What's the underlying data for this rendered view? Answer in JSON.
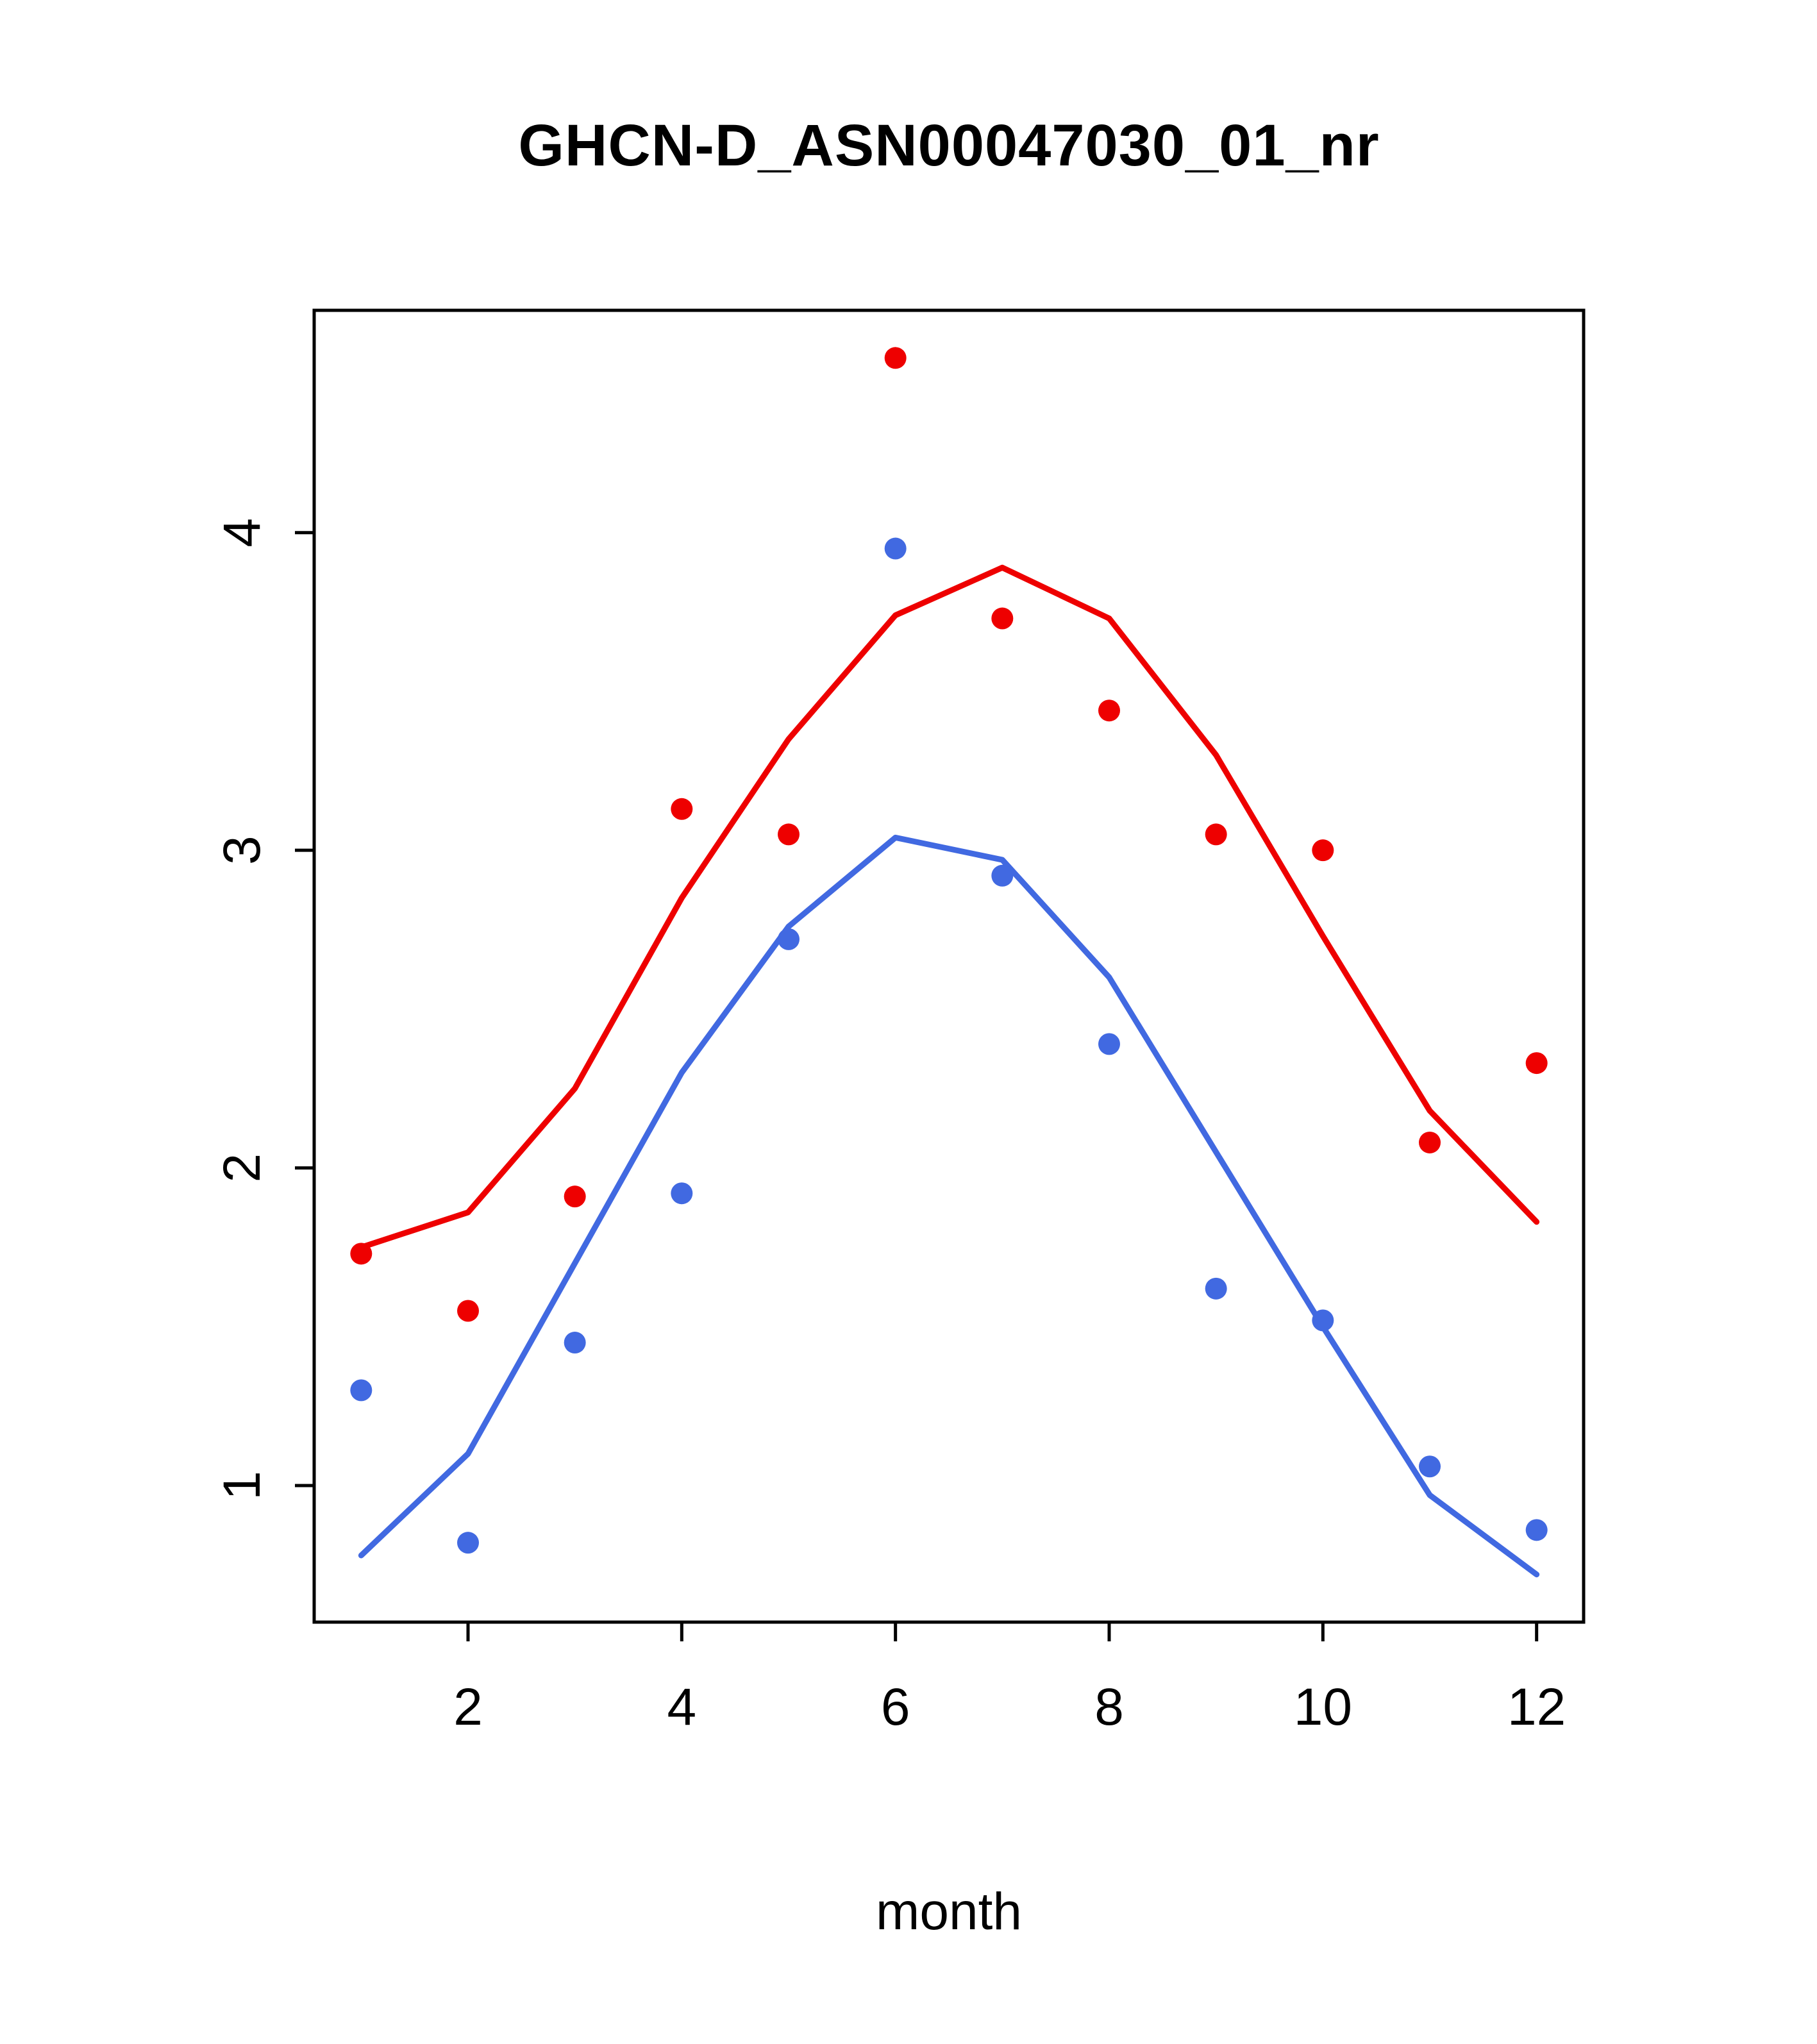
{
  "title": "GHCN-D_ASN00047030_01_nr",
  "chart_data": {
    "type": "scatter",
    "title": "GHCN-D_ASN00047030_01_nr",
    "xlabel": "month",
    "ylabel": "",
    "xlim": [
      0.56,
      12.44
    ],
    "ylim": [
      0.57,
      4.7
    ],
    "x_ticks": [
      2,
      4,
      6,
      8,
      10,
      12
    ],
    "y_ticks": [
      1,
      2,
      3,
      4
    ],
    "grid": false,
    "legend": "none",
    "x": [
      1,
      2,
      3,
      4,
      5,
      6,
      7,
      8,
      9,
      10,
      11,
      12
    ],
    "series": [
      {
        "name": "red-smooth-line",
        "render": "line",
        "color": "#ee0000",
        "values": [
          1.75,
          1.86,
          2.25,
          2.85,
          3.35,
          3.74,
          3.89,
          3.73,
          3.3,
          2.73,
          2.18,
          1.83
        ]
      },
      {
        "name": "blue-smooth-line",
        "render": "line",
        "color": "#4169e1",
        "values": [
          0.78,
          1.1,
          1.7,
          2.3,
          2.76,
          3.04,
          2.97,
          2.6,
          2.05,
          1.5,
          0.97,
          0.72
        ]
      },
      {
        "name": "red-points",
        "render": "points",
        "color": "#ee0000",
        "values": [
          1.73,
          1.55,
          1.91,
          3.13,
          3.05,
          4.55,
          3.73,
          3.44,
          3.05,
          3.0,
          2.08,
          2.33
        ]
      },
      {
        "name": "blue-points",
        "render": "points",
        "color": "#4169e1",
        "values": [
          1.3,
          0.82,
          1.45,
          1.92,
          2.72,
          3.95,
          2.92,
          2.39,
          1.62,
          1.52,
          1.06,
          0.86
        ]
      }
    ]
  }
}
